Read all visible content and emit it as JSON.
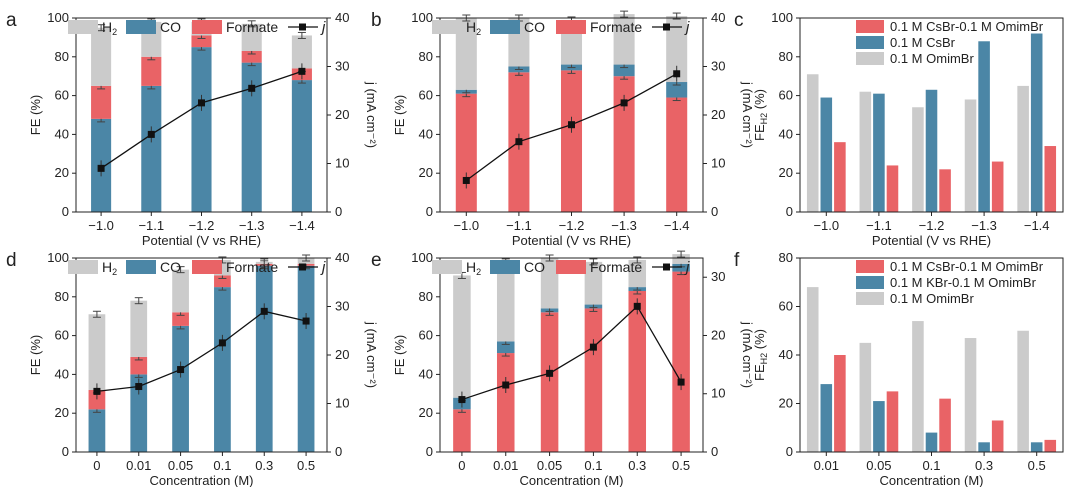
{
  "colors": {
    "h2": "#cbcbcb",
    "co": "#4b86a6",
    "formate": "#e96366",
    "line": "#111111"
  },
  "chart_data": [
    {
      "panel": "a",
      "type": "bar",
      "categories": [
        "−1.0",
        "−1.1",
        "−1.2",
        "−1.3",
        "−1.4"
      ],
      "xlabel": "Potential (V vs RHE)",
      "ylabel": "FE (%)",
      "ylim": [
        0,
        100
      ],
      "yticks": [
        0,
        20,
        40,
        60,
        80,
        100
      ],
      "y2label": "j (mA cm⁻²)",
      "y2lim": [
        0,
        40
      ],
      "y2ticks": [
        0,
        10,
        20,
        30,
        40
      ],
      "legend": {
        "h2": "H",
        "h2sub": "2",
        "co": "CO",
        "formate": "Formate",
        "j": "j"
      },
      "series": [
        {
          "name": "CO",
          "values": [
            48,
            65,
            85,
            77,
            68
          ]
        },
        {
          "name": "Formate",
          "values": [
            17,
            15,
            6,
            6,
            6
          ]
        },
        {
          "name": "H2",
          "values": [
            30,
            18,
            7,
            14,
            17
          ]
        }
      ],
      "j": [
        9,
        16,
        22.5,
        25.5,
        29
      ]
    },
    {
      "panel": "b",
      "type": "bar",
      "categories": [
        "−1.0",
        "−1.1",
        "−1.2",
        "−1.3",
        "−1.4"
      ],
      "xlabel": "Potential (V vs RHE)",
      "ylabel": "FE (%)",
      "ylim": [
        0,
        100
      ],
      "yticks": [
        0,
        20,
        40,
        60,
        80,
        100
      ],
      "y2label": "j (mA cm⁻²)",
      "y2lim": [
        0,
        40
      ],
      "y2ticks": [
        0,
        10,
        20,
        30,
        40
      ],
      "legend": {
        "h2": "H",
        "h2sub": "2",
        "co": "CO",
        "formate": "Formate",
        "j": "j"
      },
      "series": [
        {
          "name": "Formate",
          "values": [
            61,
            72,
            73,
            70,
            59
          ]
        },
        {
          "name": "CO",
          "values": [
            2,
            3,
            3,
            6,
            8
          ]
        },
        {
          "name": "H2",
          "values": [
            37,
            25,
            23,
            26,
            34
          ]
        }
      ],
      "j": [
        6.5,
        14.5,
        18,
        22.5,
        28.5
      ]
    },
    {
      "panel": "c",
      "type": "bar",
      "grouped": true,
      "categories": [
        "−1.0",
        "−1.1",
        "−1.2",
        "−1.3",
        "−1.4"
      ],
      "xlabel": "Potential (V vs RHE)",
      "ylabel": "FE",
      "ylabel_sub": "H2",
      "ylabel_unit": " (%)",
      "ylim": [
        0,
        100
      ],
      "yticks": [
        0,
        20,
        40,
        60,
        80,
        100
      ],
      "legend_order": [
        "0.1 M CsBr-0.1 M OmimBr",
        "0.1 M CsBr",
        "0.1 M OmimBr"
      ],
      "series": [
        {
          "name": "0.1 M OmimBr",
          "color": "#cbcbcb",
          "values": [
            71,
            62,
            54,
            58,
            65
          ]
        },
        {
          "name": "0.1 M CsBr",
          "color": "#4b86a6",
          "values": [
            59,
            61,
            63,
            88,
            92
          ]
        },
        {
          "name": "0.1 M CsBr-0.1 M OmimBr",
          "color": "#e96366",
          "values": [
            36,
            24,
            22,
            26,
            34
          ]
        }
      ]
    },
    {
      "panel": "d",
      "type": "bar",
      "categories": [
        "0",
        "0.01",
        "0.05",
        "0.1",
        "0.3",
        "0.5"
      ],
      "xlabel": "Concentration (M)",
      "ylabel": "FE (%)",
      "ylim": [
        0,
        100
      ],
      "yticks": [
        0,
        20,
        40,
        60,
        80,
        100
      ],
      "y2label": "j (mA cm⁻²)",
      "y2lim": [
        0,
        40
      ],
      "y2ticks": [
        0,
        10,
        20,
        30,
        40
      ],
      "legend": {
        "h2": "H",
        "h2sub": "2",
        "co": "CO",
        "formate": "Formate",
        "j": "j"
      },
      "series": [
        {
          "name": "CO",
          "values": [
            22,
            40,
            65,
            85,
            96,
            96
          ]
        },
        {
          "name": "Formate",
          "values": [
            10,
            9,
            7,
            6,
            1,
            1
          ]
        },
        {
          "name": "H2",
          "values": [
            39,
            29,
            22,
            8,
            1,
            3
          ]
        }
      ],
      "j": [
        12.5,
        13.5,
        17,
        22.5,
        29,
        27
      ]
    },
    {
      "panel": "e",
      "type": "bar",
      "categories": [
        "0",
        "0.01",
        "0.05",
        "0.1",
        "0.3",
        "0.5"
      ],
      "xlabel": "Concentration (M)",
      "ylabel": "FE (%)",
      "ylim": [
        0,
        100
      ],
      "yticks": [
        0,
        20,
        40,
        60,
        80,
        100
      ],
      "y2label": "j (mA cm⁻²)",
      "y2lim": [
        0,
        33.3
      ],
      "y2ticks": [
        0,
        10,
        20,
        30
      ],
      "legend": {
        "h2": "H",
        "h2sub": "2",
        "co": "CO",
        "formate": "Formate",
        "j": "j"
      },
      "series": [
        {
          "name": "Formate",
          "values": [
            22,
            51,
            72,
            74,
            83,
            93
          ]
        },
        {
          "name": "CO",
          "values": [
            6,
            6,
            2,
            2,
            2,
            4
          ]
        },
        {
          "name": "H2",
          "values": [
            63,
            41,
            26,
            22,
            14,
            5
          ]
        }
      ],
      "j": [
        9,
        11.5,
        13.5,
        18,
        25,
        12
      ]
    },
    {
      "panel": "f",
      "type": "bar",
      "grouped": true,
      "categories": [
        "0.01",
        "0.05",
        "0.1",
        "0.3",
        "0.5"
      ],
      "xlabel": "Concentration (M)",
      "ylabel": "FE",
      "ylabel_sub": "H2",
      "ylabel_unit": " (%)",
      "ylim": [
        0,
        80
      ],
      "yticks": [
        0,
        20,
        40,
        60,
        80
      ],
      "legend_order": [
        "0.1 M CsBr-0.1 M OmimBr",
        "0.1 M KBr-0.1 M OmimBr",
        "0.1 M OmimBr"
      ],
      "series": [
        {
          "name": "0.1 M OmimBr",
          "color": "#cbcbcb",
          "values": [
            68,
            45,
            54,
            47,
            50
          ]
        },
        {
          "name": "0.1 M KBr-0.1 M OmimBr",
          "color": "#4b86a6",
          "values": [
            28,
            21,
            8,
            4,
            4
          ]
        },
        {
          "name": "0.1 M CsBr-0.1 M OmimBr",
          "color": "#e96366",
          "values": [
            40,
            25,
            22,
            13,
            5
          ]
        }
      ]
    }
  ],
  "panel_labels": [
    "a",
    "b",
    "c",
    "d",
    "e",
    "f"
  ]
}
